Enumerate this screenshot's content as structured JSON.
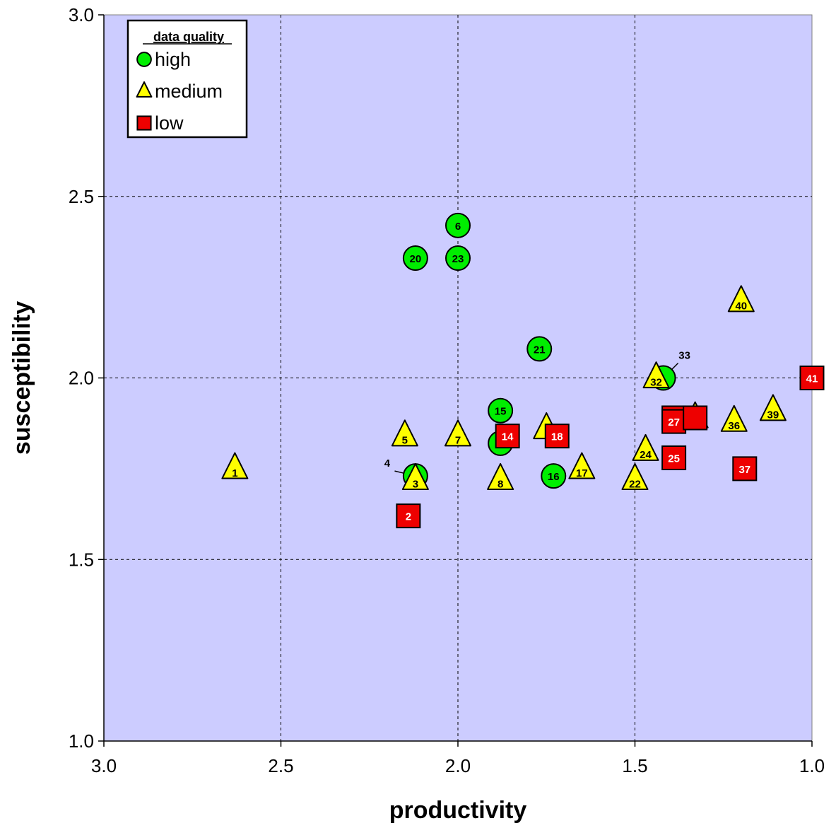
{
  "chart_data": {
    "type": "scatter",
    "title": "",
    "xlabel": "productivity",
    "ylabel": "susceptibility",
    "xlim": [
      3.0,
      1.0
    ],
    "ylim": [
      1.0,
      3.0
    ],
    "x_reversed": true,
    "x_ticks": [
      "3.0",
      "2.5",
      "2.0",
      "1.5",
      "1.0"
    ],
    "y_ticks": [
      "1.0",
      "1.5",
      "2.0",
      "2.5",
      "3.0"
    ],
    "grid": true,
    "legend": {
      "title": "data quality",
      "position": "top-left"
    },
    "series": [
      {
        "name": "high",
        "marker": "circle",
        "color": "#00ee00",
        "points": [
          {
            "id": "4",
            "x": 2.12,
            "y": 1.73
          },
          {
            "id": "6",
            "x": 2.0,
            "y": 2.42
          },
          {
            "id": "15",
            "x": 1.88,
            "y": 1.91
          },
          {
            "id": "",
            "x": 1.88,
            "y": 1.82
          },
          {
            "id": "16",
            "x": 1.73,
            "y": 1.73
          },
          {
            "id": "20",
            "x": 2.12,
            "y": 2.33
          },
          {
            "id": "21",
            "x": 1.77,
            "y": 2.08
          },
          {
            "id": "23",
            "x": 2.0,
            "y": 2.33
          },
          {
            "id": "33",
            "x": 1.42,
            "y": 2.0
          }
        ]
      },
      {
        "name": "medium",
        "marker": "triangle",
        "color": "#ffff00",
        "points": [
          {
            "id": "1",
            "x": 2.63,
            "y": 1.75
          },
          {
            "id": "3",
            "x": 2.12,
            "y": 1.72
          },
          {
            "id": "5",
            "x": 2.15,
            "y": 1.84
          },
          {
            "id": "7",
            "x": 2.0,
            "y": 1.84
          },
          {
            "id": "8",
            "x": 1.88,
            "y": 1.72
          },
          {
            "id": "",
            "x": 1.75,
            "y": 1.86
          },
          {
            "id": "17",
            "x": 1.65,
            "y": 1.75
          },
          {
            "id": "22",
            "x": 1.5,
            "y": 1.72
          },
          {
            "id": "24",
            "x": 1.47,
            "y": 1.8
          },
          {
            "id": "32",
            "x": 1.44,
            "y": 2.0
          },
          {
            "id": "",
            "x": 1.33,
            "y": 1.89
          },
          {
            "id": "36",
            "x": 1.22,
            "y": 1.88
          },
          {
            "id": "39",
            "x": 1.11,
            "y": 1.91
          },
          {
            "id": "40",
            "x": 1.2,
            "y": 2.21
          }
        ]
      },
      {
        "name": "low",
        "marker": "square",
        "color": "#ee0000",
        "points": [
          {
            "id": "2",
            "x": 2.14,
            "y": 1.62
          },
          {
            "id": "14",
            "x": 1.86,
            "y": 1.84
          },
          {
            "id": "18",
            "x": 1.72,
            "y": 1.84
          },
          {
            "id": "",
            "x": 1.39,
            "y": 1.89
          },
          {
            "id": "27",
            "x": 1.39,
            "y": 1.88
          },
          {
            "id": "",
            "x": 1.33,
            "y": 1.89
          },
          {
            "id": "25",
            "x": 1.39,
            "y": 1.78
          },
          {
            "id": "37",
            "x": 1.19,
            "y": 1.75
          },
          {
            "id": "41",
            "x": 1.0,
            "y": 2.0
          }
        ]
      }
    ]
  }
}
